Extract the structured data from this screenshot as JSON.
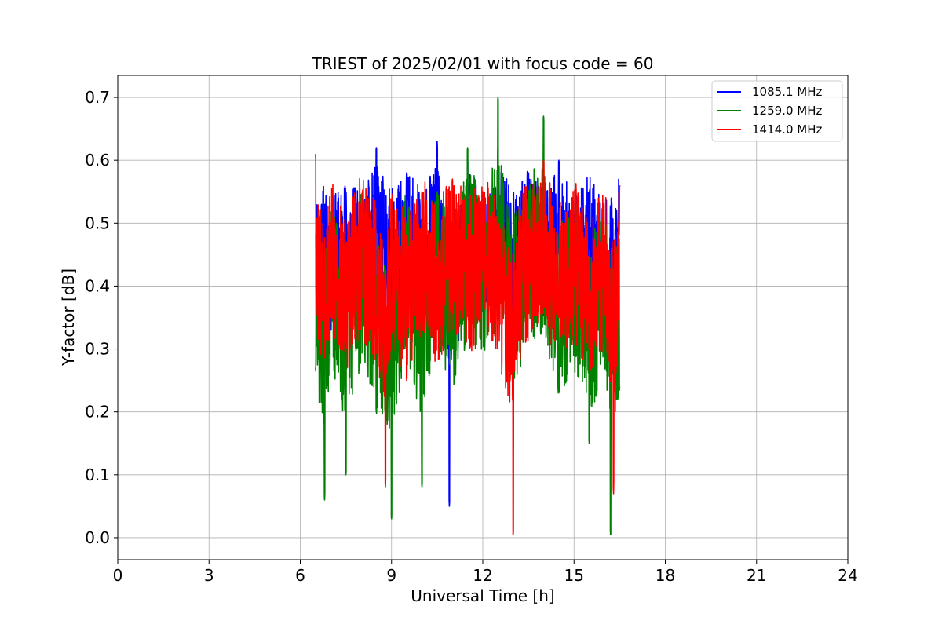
{
  "chart_data": {
    "type": "line",
    "title": "TRIEST of 2025/02/01 with focus code = 60",
    "xlabel": "Universal Time [h]",
    "ylabel": "Y-factor [dB]",
    "xlim": [
      0,
      24
    ],
    "ylim": [
      -0.035,
      0.735
    ],
    "xticks": [
      0,
      3,
      6,
      9,
      12,
      15,
      18,
      21,
      24
    ],
    "xtick_labels": [
      "0",
      "3",
      "6",
      "9",
      "12",
      "15",
      "18",
      "21",
      "24"
    ],
    "yticks": [
      0.0,
      0.1,
      0.2,
      0.3,
      0.4,
      0.5,
      0.6,
      0.7
    ],
    "ytick_labels": [
      "0.0",
      "0.1",
      "0.2",
      "0.3",
      "0.4",
      "0.5",
      "0.6",
      "0.7"
    ],
    "grid": true,
    "legend_position": "top-right",
    "series": [
      {
        "name": "1085.1 MHz",
        "color": "#0000ff",
        "x": [
          6.5,
          6.7,
          7.0,
          7.5,
          8.0,
          8.5,
          9.0,
          9.5,
          10.0,
          10.5,
          10.9,
          11.5,
          12.0,
          12.5,
          13.0,
          13.5,
          14.0,
          14.5,
          15.0,
          15.5,
          16.0,
          16.3,
          16.5
        ],
        "y": [
          0.48,
          0.53,
          0.4,
          0.55,
          0.42,
          0.62,
          0.46,
          0.58,
          0.45,
          0.63,
          0.05,
          0.6,
          0.43,
          0.62,
          0.47,
          0.58,
          0.44,
          0.6,
          0.42,
          0.55,
          0.38,
          0.41,
          0.56
        ]
      },
      {
        "name": "1259.0 MHz",
        "color": "#008000",
        "x": [
          6.5,
          6.8,
          7.0,
          7.5,
          8.0,
          8.5,
          9.0,
          9.5,
          10.0,
          10.5,
          11.0,
          11.5,
          12.0,
          12.5,
          13.0,
          13.5,
          14.0,
          14.5,
          15.0,
          15.5,
          16.0,
          16.2,
          16.5
        ],
        "y": [
          0.27,
          0.06,
          0.38,
          0.1,
          0.45,
          0.2,
          0.03,
          0.5,
          0.08,
          0.55,
          0.3,
          0.62,
          0.46,
          0.7,
          0.3,
          0.55,
          0.67,
          0.23,
          0.42,
          0.15,
          0.35,
          0.0,
          0.24
        ]
      },
      {
        "name": "1414.0 MHz",
        "color": "#ff0000",
        "x": [
          6.5,
          6.7,
          7.0,
          7.5,
          8.0,
          8.5,
          8.8,
          9.0,
          9.5,
          10.0,
          10.5,
          11.0,
          11.5,
          12.0,
          12.5,
          13.0,
          13.3,
          13.5,
          14.0,
          14.5,
          15.0,
          15.5,
          16.0,
          16.3,
          16.5
        ],
        "y": [
          0.61,
          0.35,
          0.5,
          0.3,
          0.53,
          0.35,
          0.08,
          0.48,
          0.25,
          0.55,
          0.33,
          0.57,
          0.4,
          0.55,
          0.38,
          0.0,
          0.5,
          0.43,
          0.6,
          0.35,
          0.5,
          0.3,
          0.45,
          0.07,
          0.56
        ]
      }
    ]
  }
}
